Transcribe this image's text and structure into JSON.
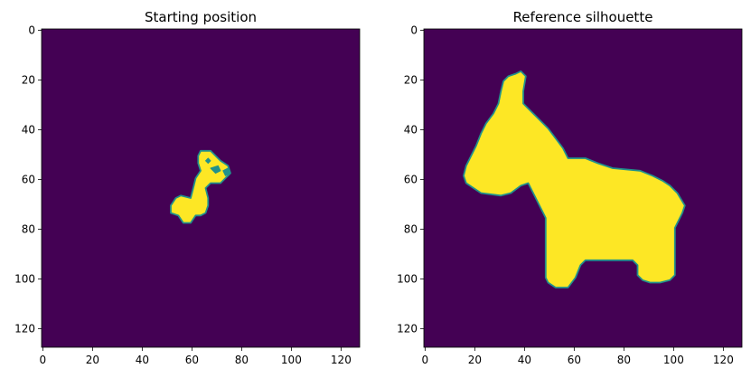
{
  "chart_data": [
    {
      "type": "heatmap",
      "title": "Starting position",
      "xlabel": "",
      "ylabel": "",
      "xlim": [
        0,
        128
      ],
      "ylim": [
        128,
        0
      ],
      "xticks": [
        0,
        20,
        40,
        60,
        80,
        100,
        120
      ],
      "yticks": [
        0,
        20,
        40,
        60,
        80,
        100,
        120
      ],
      "grid": false,
      "colormap": "viridis",
      "background_color": "#440154",
      "foreground_color": "#fde725",
      "edge_color": "#21918c",
      "shape_outlines": [
        [
          [
            60,
            68
          ],
          [
            56,
            67
          ],
          [
            54,
            68
          ],
          [
            52,
            71
          ],
          [
            52,
            74
          ],
          [
            55,
            75
          ],
          [
            57,
            78
          ],
          [
            60,
            78
          ],
          [
            62,
            75
          ],
          [
            64,
            75
          ],
          [
            66,
            74
          ],
          [
            67,
            71
          ],
          [
            67,
            68
          ],
          [
            66,
            64
          ],
          [
            68,
            62
          ],
          [
            72,
            62
          ],
          [
            74,
            60
          ],
          [
            76,
            58
          ],
          [
            75,
            55
          ],
          [
            72,
            53
          ],
          [
            70,
            51
          ],
          [
            68,
            49
          ],
          [
            64,
            49
          ],
          [
            63,
            51
          ],
          [
            63,
            54
          ],
          [
            64,
            57
          ],
          [
            62,
            60
          ],
          [
            61,
            64
          ]
        ],
        [
          [
            68,
            56
          ],
          [
            70,
            58
          ],
          [
            72,
            57
          ],
          [
            71,
            55
          ]
        ],
        [
          [
            73,
            57
          ],
          [
            74,
            59
          ],
          [
            76,
            58
          ],
          [
            75,
            56
          ]
        ],
        [
          [
            66,
            53
          ],
          [
            67,
            54
          ],
          [
            68,
            53
          ],
          [
            67,
            52
          ]
        ]
      ]
    },
    {
      "type": "heatmap",
      "title": "Reference silhouette",
      "xlabel": "",
      "ylabel": "",
      "xlim": [
        0,
        128
      ],
      "ylim": [
        128,
        0
      ],
      "xticks": [
        0,
        20,
        40,
        60,
        80,
        100,
        120
      ],
      "yticks": [
        0,
        20,
        40,
        60,
        80,
        100,
        120
      ],
      "grid": false,
      "colormap": "viridis",
      "background_color": "#440154",
      "foreground_color": "#fde725",
      "edge_color": "#21918c",
      "shape_outlines": [
        [
          [
            37,
            18
          ],
          [
            34,
            19
          ],
          [
            32,
            21
          ],
          [
            31,
            25
          ],
          [
            30,
            30
          ],
          [
            28,
            34
          ],
          [
            25,
            38
          ],
          [
            23,
            42
          ],
          [
            21,
            47
          ],
          [
            19,
            51
          ],
          [
            17,
            55
          ],
          [
            16,
            59
          ],
          [
            17,
            62
          ],
          [
            20,
            64
          ],
          [
            23,
            66
          ],
          [
            31,
            67
          ],
          [
            35,
            66
          ],
          [
            39,
            63
          ],
          [
            42,
            62
          ],
          [
            44,
            66
          ],
          [
            47,
            72
          ],
          [
            49,
            76
          ],
          [
            49,
            80
          ],
          [
            49,
            84
          ],
          [
            49,
            90
          ],
          [
            49,
            96
          ],
          [
            49,
            100
          ],
          [
            50,
            102
          ],
          [
            53,
            104
          ],
          [
            58,
            104
          ],
          [
            61,
            100
          ],
          [
            63,
            95
          ],
          [
            65,
            93
          ],
          [
            72,
            93
          ],
          [
            80,
            93
          ],
          [
            84,
            93
          ],
          [
            86,
            95
          ],
          [
            86,
            99
          ],
          [
            88,
            101
          ],
          [
            91,
            102
          ],
          [
            95,
            102
          ],
          [
            99,
            101
          ],
          [
            101,
            99
          ],
          [
            101,
            95
          ],
          [
            101,
            90
          ],
          [
            101,
            84
          ],
          [
            101,
            80
          ],
          [
            104,
            74
          ],
          [
            105,
            71
          ],
          [
            102,
            66
          ],
          [
            99,
            63
          ],
          [
            96,
            61
          ],
          [
            92,
            59
          ],
          [
            87,
            57
          ],
          [
            76,
            56
          ],
          [
            70,
            54
          ],
          [
            65,
            52
          ],
          [
            58,
            52
          ],
          [
            56,
            48
          ],
          [
            53,
            44
          ],
          [
            50,
            40
          ],
          [
            45,
            35
          ],
          [
            40,
            30
          ],
          [
            40,
            25
          ],
          [
            41,
            19
          ],
          [
            39,
            17
          ]
        ]
      ]
    }
  ]
}
